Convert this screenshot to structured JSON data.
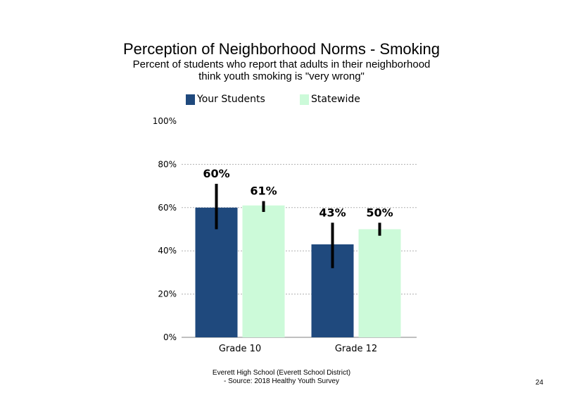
{
  "chart_data": {
    "type": "bar",
    "title": "Perception of Neighborhood Norms - Smoking",
    "subtitle_lines": [
      "Percent of students who report that adults in their neighborhood",
      "think youth smoking is \"very wrong\""
    ],
    "categories": [
      "Grade 10",
      "Grade 12"
    ],
    "series": [
      {
        "name": "Your Students",
        "color": "#1f497d",
        "values": [
          60,
          43
        ],
        "labels": [
          "60%",
          "43%"
        ],
        "error": [
          [
            50,
            71
          ],
          [
            32,
            53
          ]
        ]
      },
      {
        "name": "Statewide",
        "color": "#ccfad9",
        "values": [
          61,
          50
        ],
        "labels": [
          "61%",
          "50%"
        ],
        "error": [
          [
            58,
            63
          ],
          [
            47,
            53
          ]
        ]
      }
    ],
    "ylim": [
      0,
      100
    ],
    "yticks": [
      "0%",
      "20%",
      "40%",
      "60%",
      "80%",
      "100%"
    ],
    "legend_position": "top",
    "grid": "dotted horizontal"
  },
  "footer": {
    "line1": "Everett High School (Everett School District)",
    "line2": "- Source: 2018 Healthy Youth Survey"
  },
  "page_number": "24"
}
